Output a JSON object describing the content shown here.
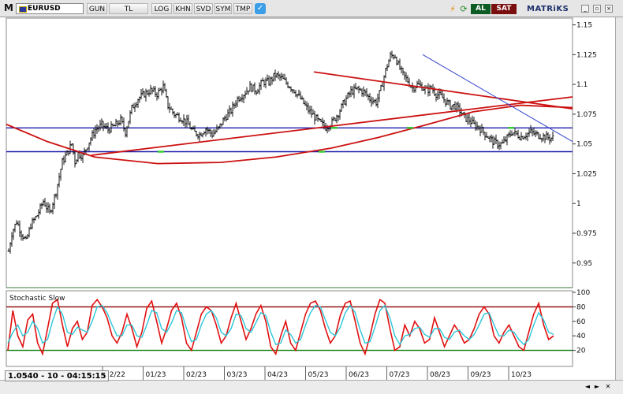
{
  "toolbar": {
    "menu_glyph": "M",
    "symbol": "EURUSD",
    "buttons": [
      "GUN",
      "TL",
      "LOG",
      "KHN",
      "SVD",
      "SYM",
      "TMP"
    ],
    "twitter_icon": "bird-icon",
    "alert_icon": "lightning-icon",
    "refresh_icon": "refresh-icon",
    "buy_label": "AL",
    "sell_label": "SAT",
    "brand": "MATRiKS"
  },
  "status": {
    "text": "1.0540 - 10 - 04:15:15"
  },
  "colors": {
    "grid_red": "#d40000",
    "ma_red": "#cc1111",
    "trend_blue": "#3344cc",
    "support_blue": "#1a1aaa",
    "stoch_k": "#e01010",
    "stoch_d": "#2cc6d8",
    "stoch_upper": "#8a0000",
    "stoch_lower": "#007700",
    "candle": "#111111"
  },
  "chart_data": [
    {
      "type": "bar",
      "style": "ohlc",
      "price_axis": {
        "ticks": [
          "1.15",
          "1.125",
          "1.1",
          "1.075",
          "1.05",
          "1.025",
          "1",
          "0.975",
          "0.95"
        ],
        "ylim": [
          0.93,
          1.155
        ]
      },
      "time_axis": {
        "ticks": [
          "12/22",
          "01/23",
          "02/23",
          "03/23",
          "04/23",
          "05/23",
          "06/23",
          "07/23",
          "08/23",
          "09/23",
          "10/23"
        ]
      },
      "horizontal_lines": [
        1.0635,
        1.0435
      ],
      "path": [
        [
          0,
          0.96
        ],
        [
          4,
          0.975
        ],
        [
          10,
          0.985
        ],
        [
          16,
          0.975
        ],
        [
          22,
          0.968
        ],
        [
          28,
          0.982
        ],
        [
          36,
          0.99
        ],
        [
          44,
          1.002
        ],
        [
          52,
          0.992
        ],
        [
          60,
          1.01
        ],
        [
          68,
          1.035
        ],
        [
          74,
          1.042
        ],
        [
          80,
          1.05
        ],
        [
          84,
          1.035
        ],
        [
          88,
          1.042
        ],
        [
          94,
          1.04
        ],
        [
          102,
          1.052
        ],
        [
          110,
          1.062
        ],
        [
          118,
          1.066
        ],
        [
          126,
          1.062
        ],
        [
          134,
          1.065
        ],
        [
          142,
          1.07
        ],
        [
          148,
          1.06
        ],
        [
          156,
          1.08
        ],
        [
          164,
          1.088
        ],
        [
          172,
          1.092
        ],
        [
          180,
          1.095
        ],
        [
          188,
          1.092
        ],
        [
          196,
          1.098
        ],
        [
          202,
          1.082
        ],
        [
          210,
          1.075
        ],
        [
          218,
          1.072
        ],
        [
          226,
          1.068
        ],
        [
          234,
          1.06
        ],
        [
          242,
          1.058
        ],
        [
          250,
          1.063
        ],
        [
          258,
          1.058
        ],
        [
          266,
          1.063
        ],
        [
          274,
          1.072
        ],
        [
          282,
          1.078
        ],
        [
          290,
          1.088
        ],
        [
          298,
          1.092
        ],
        [
          306,
          1.098
        ],
        [
          314,
          1.095
        ],
        [
          322,
          1.102
        ],
        [
          330,
          1.102
        ],
        [
          338,
          1.108
        ],
        [
          346,
          1.105
        ],
        [
          354,
          1.1
        ],
        [
          362,
          1.095
        ],
        [
          370,
          1.088
        ],
        [
          378,
          1.08
        ],
        [
          386,
          1.074
        ],
        [
          394,
          1.068
        ],
        [
          402,
          1.064
        ],
        [
          410,
          1.068
        ],
        [
          418,
          1.076
        ],
        [
          426,
          1.086
        ],
        [
          434,
          1.094
        ],
        [
          442,
          1.096
        ],
        [
          450,
          1.094
        ],
        [
          458,
          1.088
        ],
        [
          466,
          1.085
        ],
        [
          472,
          1.096
        ],
        [
          478,
          1.112
        ],
        [
          484,
          1.124
        ],
        [
          490,
          1.124
        ],
        [
          494,
          1.116
        ],
        [
          500,
          1.108
        ],
        [
          506,
          1.103
        ],
        [
          512,
          1.097
        ],
        [
          518,
          1.1
        ],
        [
          524,
          1.098
        ],
        [
          530,
          1.095
        ],
        [
          536,
          1.097
        ],
        [
          542,
          1.092
        ],
        [
          548,
          1.09
        ],
        [
          554,
          1.086
        ],
        [
          560,
          1.082
        ],
        [
          566,
          1.082
        ],
        [
          572,
          1.078
        ],
        [
          578,
          1.072
        ],
        [
          584,
          1.07
        ],
        [
          590,
          1.066
        ],
        [
          596,
          1.064
        ],
        [
          602,
          1.06
        ],
        [
          608,
          1.056
        ],
        [
          614,
          1.052
        ],
        [
          620,
          1.05
        ],
        [
          626,
          1.05
        ],
        [
          632,
          1.055
        ],
        [
          638,
          1.06
        ],
        [
          644,
          1.058
        ],
        [
          650,
          1.056
        ],
        [
          656,
          1.058
        ],
        [
          662,
          1.06
        ],
        [
          668,
          1.058
        ],
        [
          674,
          1.057
        ],
        [
          680,
          1.056
        ],
        [
          686,
          1.055
        ],
        [
          690,
          1.055
        ]
      ]
    },
    {
      "type": "line",
      "title": "Stochastic Slow",
      "y_axis": {
        "ticks": [
          "100",
          "80",
          "60",
          "40",
          "20"
        ],
        "ylim": [
          0,
          100
        ]
      },
      "levels": [
        80,
        20
      ],
      "series": [
        {
          "id": "k",
          "values": [
            20,
            75,
            40,
            25,
            62,
            70,
            30,
            15,
            50,
            85,
            90,
            55,
            25,
            50,
            60,
            35,
            45,
            82,
            90,
            80,
            65,
            40,
            30,
            45,
            70,
            50,
            25,
            45,
            78,
            88,
            60,
            30,
            50,
            75,
            85,
            65,
            30,
            20,
            45,
            70,
            80,
            75,
            55,
            30,
            40,
            65,
            85,
            60,
            35,
            50,
            70,
            82,
            60,
            25,
            15,
            40,
            60,
            30,
            20,
            45,
            70,
            85,
            88,
            75,
            50,
            30,
            40,
            68,
            85,
            88,
            60,
            30,
            15,
            40,
            70,
            90,
            85,
            50,
            20,
            25,
            55,
            40,
            60,
            50,
            30,
            35,
            65,
            45,
            25,
            40,
            55,
            45,
            30,
            35,
            50,
            70,
            80,
            70,
            40,
            30,
            45,
            55,
            40,
            25,
            20,
            45,
            70,
            85,
            55,
            35,
            40
          ]
        },
        {
          "id": "d",
          "values": [
            30,
            45,
            55,
            40,
            45,
            60,
            50,
            30,
            35,
            60,
            80,
            70,
            45,
            42,
            52,
            48,
            45,
            60,
            80,
            82,
            72,
            55,
            40,
            40,
            55,
            55,
            40,
            38,
            55,
            75,
            72,
            50,
            45,
            58,
            75,
            72,
            50,
            32,
            35,
            55,
            70,
            75,
            65,
            45,
            40,
            50,
            70,
            68,
            50,
            45,
            58,
            72,
            68,
            45,
            28,
            30,
            48,
            42,
            30,
            35,
            55,
            72,
            82,
            80,
            62,
            45,
            40,
            52,
            72,
            82,
            72,
            48,
            30,
            32,
            52,
            75,
            82,
            65,
            40,
            28,
            40,
            42,
            50,
            52,
            42,
            38,
            50,
            50,
            38,
            35,
            45,
            48,
            40,
            35,
            42,
            55,
            70,
            72,
            55,
            40,
            40,
            48,
            45,
            35,
            28,
            35,
            55,
            72,
            62,
            45,
            42
          ]
        }
      ]
    }
  ]
}
